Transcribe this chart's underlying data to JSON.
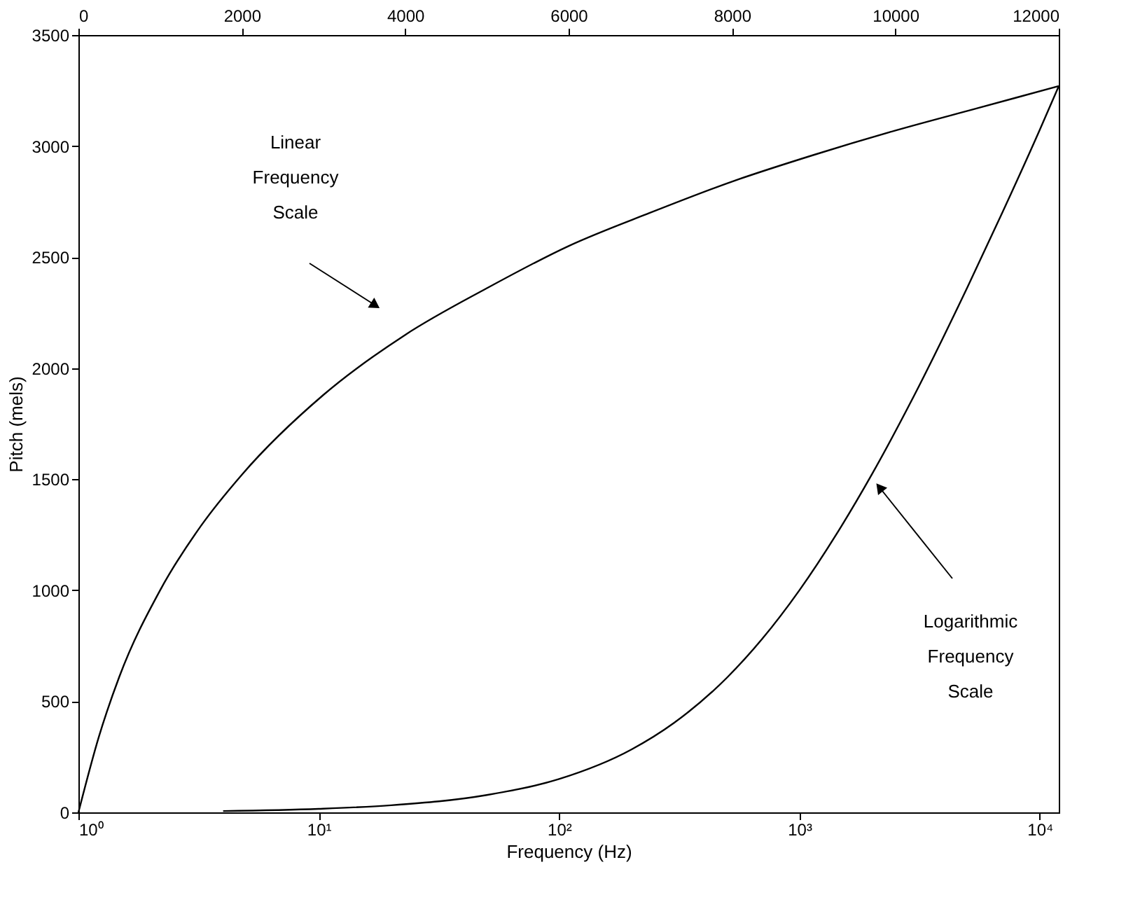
{
  "chart_data": {
    "type": "line",
    "xlabel": "Frequency (Hz)",
    "ylabel": "Pitch (mels)",
    "log": "x",
    "line_style": "solid",
    "xlim": [
      1,
      12000
    ],
    "xticks": [
      {
        "value": 1,
        "label": "10⁰"
      },
      {
        "value": 10,
        "label": "10¹"
      },
      {
        "value": 100,
        "label": "10²"
      },
      {
        "value": 1000,
        "label": "10³"
      },
      {
        "value": 10000,
        "label": "10⁴"
      }
    ],
    "x2lim": [
      0,
      12000
    ],
    "x2ticks": [
      0,
      2000,
      4000,
      6000,
      8000,
      10000,
      12000
    ],
    "ylim": [
      0,
      3500
    ],
    "yticks": [
      0,
      500,
      1000,
      1500,
      2000,
      2500,
      3000,
      3500
    ],
    "series": [
      {
        "color": "#000000",
        "axis": "x2",
        "x": [
          0,
          250,
          500,
          1000,
          1500,
          2000,
          3000,
          4000,
          5000,
          6000,
          7000,
          8000,
          9000,
          10000,
          11000,
          12000
        ],
        "values": [
          0,
          340,
          610,
          1000,
          1290,
          1520,
          1880,
          2150,
          2360,
          2550,
          2700,
          2840,
          2960,
          3070,
          3170,
          3270
        ]
      },
      {
        "color": "#000000",
        "x": [
          4,
          10,
          20,
          50,
          100,
          200,
          300,
          500,
          700,
          1000,
          1500,
          2000,
          3000,
          5000,
          7000,
          10000,
          12000
        ],
        "values": [
          6,
          16,
          32,
          78,
          150,
          283,
          402,
          607,
          781,
          1000,
          1291,
          1521,
          1876,
          2364,
          2702,
          3073,
          3270
        ]
      }
    ],
    "annotations": [
      "Linear Frequency Scale",
      "Logarithmic Frequency Scale"
    ]
  }
}
